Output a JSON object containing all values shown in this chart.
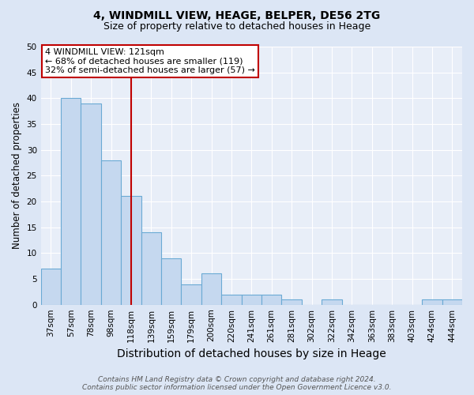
{
  "title": "4, WINDMILL VIEW, HEAGE, BELPER, DE56 2TG",
  "subtitle": "Size of property relative to detached houses in Heage",
  "xlabel": "Distribution of detached houses by size in Heage",
  "ylabel": "Number of detached properties",
  "categories": [
    "37sqm",
    "57sqm",
    "78sqm",
    "98sqm",
    "118sqm",
    "139sqm",
    "159sqm",
    "179sqm",
    "200sqm",
    "220sqm",
    "241sqm",
    "261sqm",
    "281sqm",
    "302sqm",
    "322sqm",
    "342sqm",
    "363sqm",
    "383sqm",
    "403sqm",
    "424sqm",
    "444sqm"
  ],
  "values": [
    7,
    40,
    39,
    28,
    21,
    14,
    9,
    4,
    6,
    2,
    2,
    2,
    1,
    0,
    1,
    0,
    0,
    0,
    0,
    1,
    1
  ],
  "bar_color": "#c5d8ef",
  "bar_edge_color": "#6aaad4",
  "vline_index": 4,
  "vline_color": "#c00000",
  "annotation_text": "4 WINDMILL VIEW: 121sqm\n← 68% of detached houses are smaller (119)\n32% of semi-detached houses are larger (57) →",
  "annotation_box_color": "#ffffff",
  "annotation_box_edge": "#c00000",
  "ylim": [
    0,
    50
  ],
  "yticks": [
    0,
    5,
    10,
    15,
    20,
    25,
    30,
    35,
    40,
    45,
    50
  ],
  "footer_line1": "Contains HM Land Registry data © Crown copyright and database right 2024.",
  "footer_line2": "Contains public sector information licensed under the Open Government Licence v3.0.",
  "bg_color": "#dce6f5",
  "plot_bg_color": "#e8eef8",
  "title_fontsize": 10,
  "subtitle_fontsize": 9,
  "xlabel_fontsize": 10,
  "ylabel_fontsize": 8.5,
  "tick_fontsize": 7.5,
  "footer_fontsize": 6.5,
  "ann_fontsize": 8
}
